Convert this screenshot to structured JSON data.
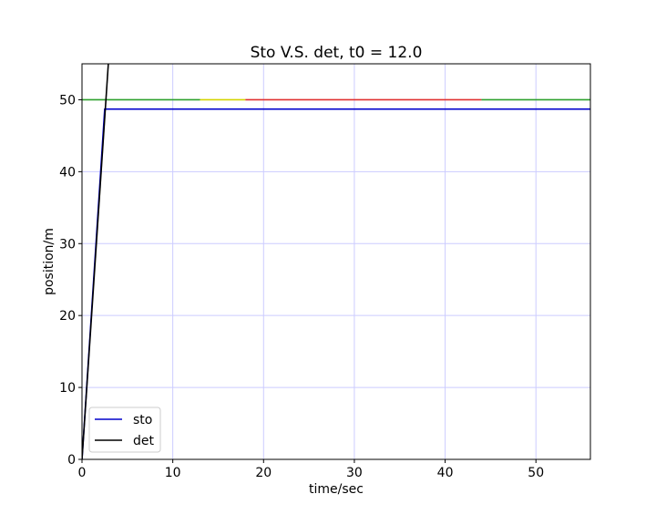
{
  "chart_data": {
    "type": "line",
    "title": "Sto V.S. det, t0 = 12.0",
    "xlabel": "time/sec",
    "ylabel": "position/m",
    "xlim": [
      0,
      56
    ],
    "ylim": [
      0,
      55
    ],
    "xticks": [
      0,
      10,
      20,
      30,
      40,
      50
    ],
    "yticks": [
      0,
      10,
      20,
      30,
      40,
      50
    ],
    "grid": true,
    "grid_color": "#ccccff",
    "legend_position": "lower-left",
    "series": [
      {
        "name": "sto",
        "color": "#0000cc",
        "x": [
          0,
          2.5,
          56
        ],
        "y": [
          0,
          48.7,
          48.7
        ]
      },
      {
        "name": "det",
        "color": "#000000",
        "x": [
          0,
          2.9
        ],
        "y": [
          0,
          55
        ]
      }
    ],
    "reference_segments": [
      {
        "color": "#2ca02c",
        "x": [
          0,
          13
        ],
        "y": 50
      },
      {
        "color": "#d4d400",
        "x": [
          13,
          18
        ],
        "y": 50
      },
      {
        "color": "#e03030",
        "x": [
          18,
          44
        ],
        "y": 50
      },
      {
        "color": "#2ca02c",
        "x": [
          44,
          56
        ],
        "y": 50
      }
    ]
  }
}
